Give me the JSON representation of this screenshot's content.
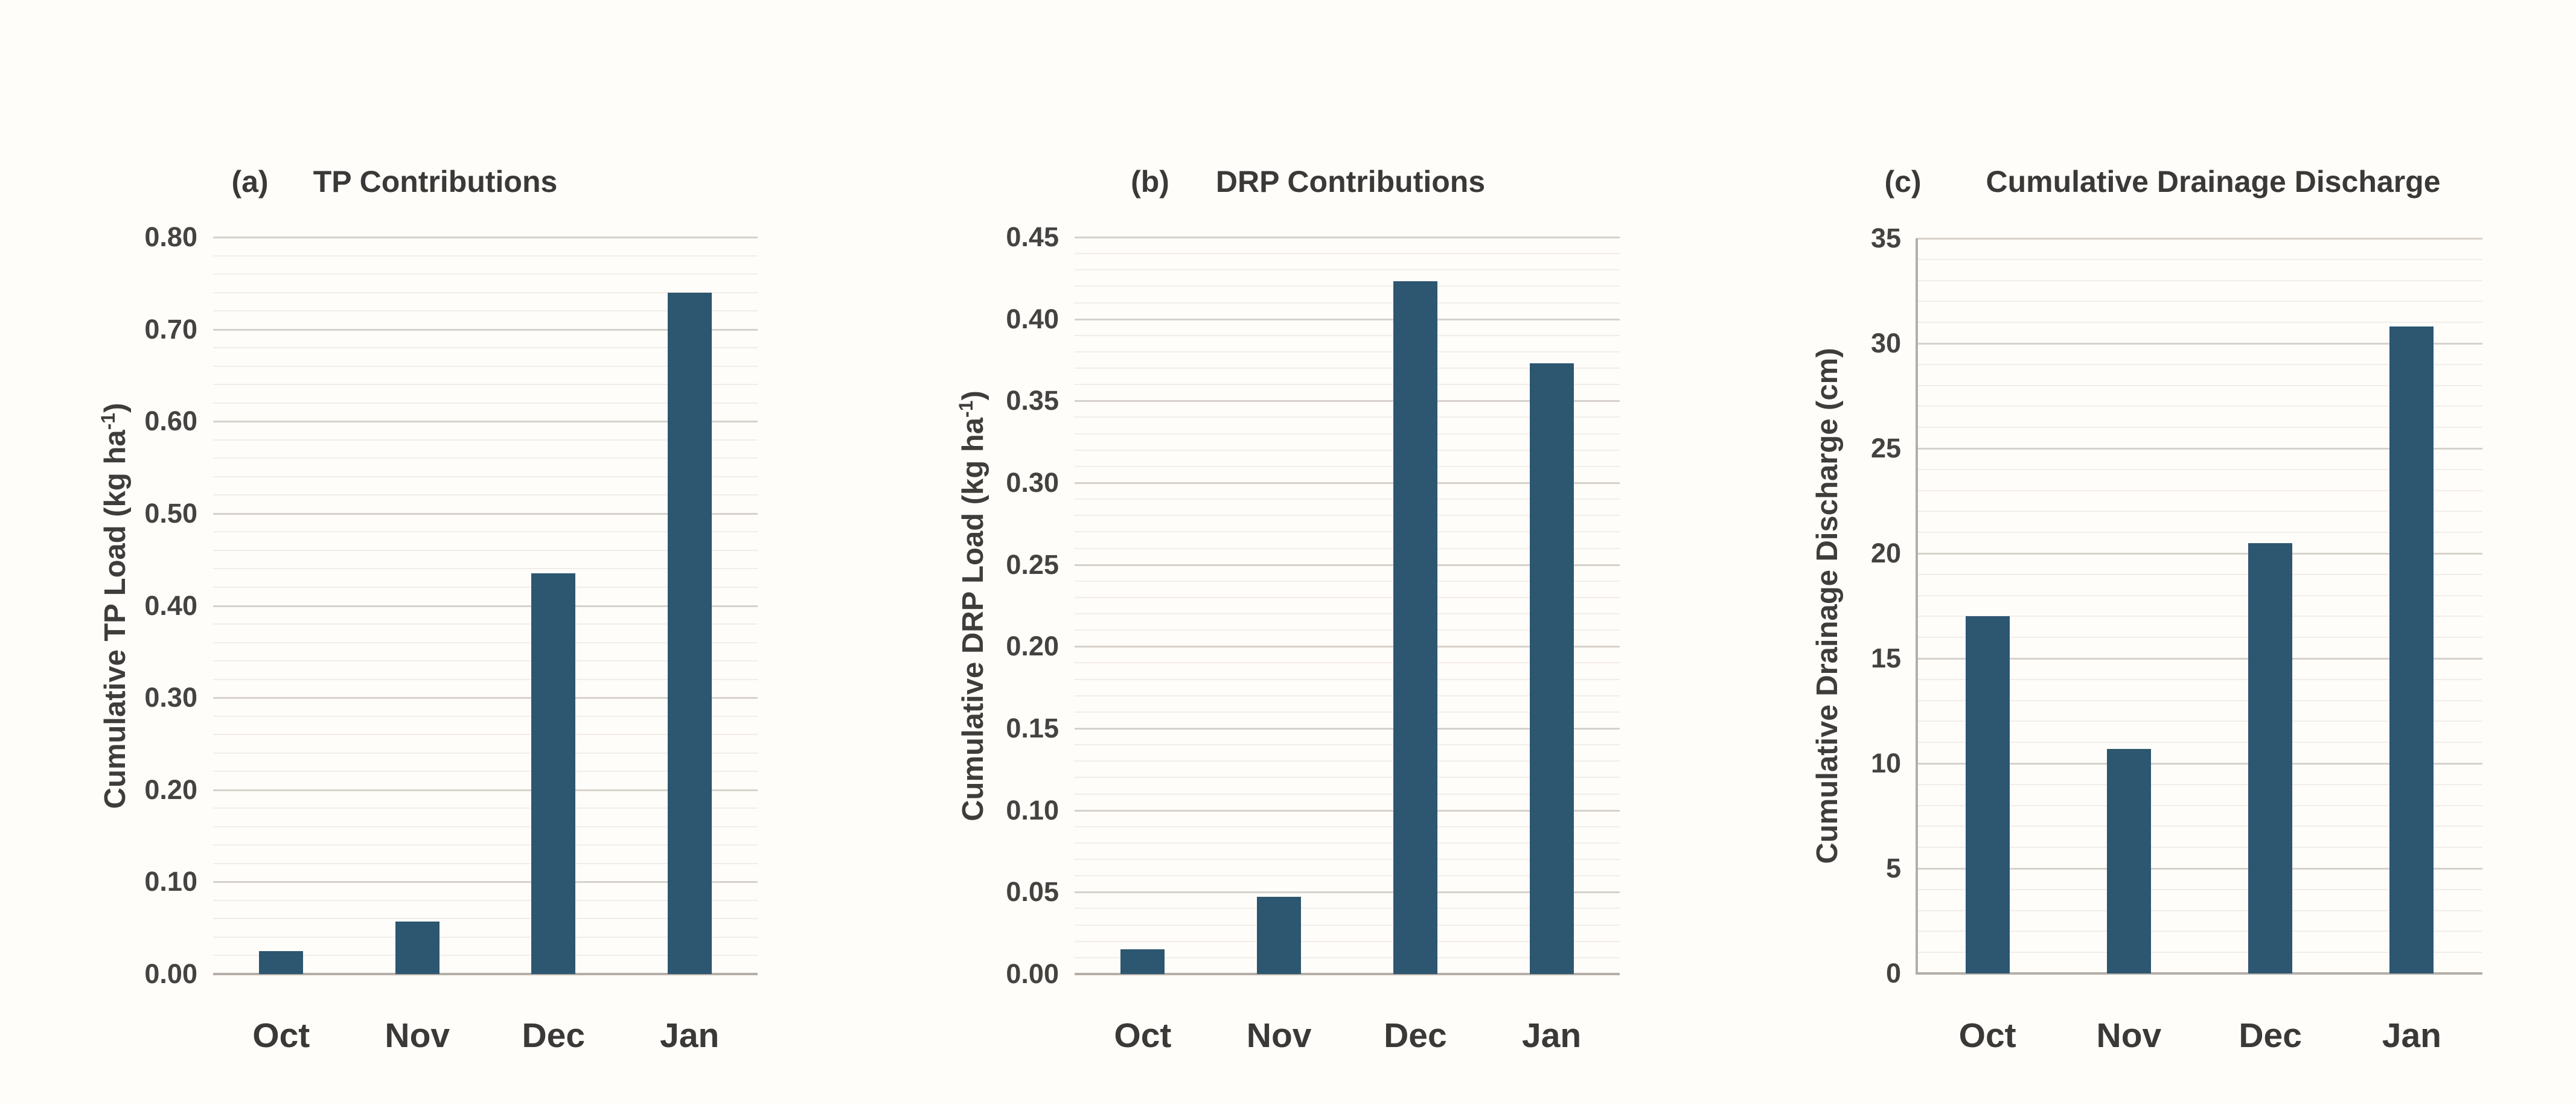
{
  "page": {
    "background_color": "#fffdf9",
    "text_color": "#3a3938"
  },
  "chart_data": [
    {
      "type": "bar",
      "panel_label": "(a)",
      "title": "TP Contributions",
      "ylabel_prefix": "Cumulative TP Load (kg ha",
      "ylabel_sup": "-1",
      "ylabel_suffix": ")",
      "categories": [
        "Oct",
        "Nov",
        "Dec",
        "Jan"
      ],
      "values": [
        0.025,
        0.057,
        0.435,
        0.74
      ],
      "ylim": [
        0,
        0.8
      ],
      "ytick_labels": [
        "0.00",
        "0.10",
        "0.20",
        "0.30",
        "0.40",
        "0.50",
        "0.60",
        "0.70",
        "0.80"
      ],
      "major_step": 0.1,
      "minor_step": 0.02,
      "grid": "on",
      "legend": "none",
      "bar_color": "#2d5670"
    },
    {
      "type": "bar",
      "panel_label": "(b)",
      "title": "DRP Contributions",
      "ylabel_prefix": "Cumulative DRP Load (kg ha",
      "ylabel_sup": "-1",
      "ylabel_suffix": ")",
      "categories": [
        "Oct",
        "Nov",
        "Dec",
        "Jan"
      ],
      "values": [
        0.015,
        0.047,
        0.423,
        0.373
      ],
      "ylim": [
        0,
        0.45
      ],
      "ytick_labels": [
        "0.00",
        "0.05",
        "0.10",
        "0.15",
        "0.20",
        "0.25",
        "0.30",
        "0.35",
        "0.40",
        "0.45"
      ],
      "major_step": 0.05,
      "minor_step": 0.01,
      "grid": "on",
      "legend": "none",
      "bar_color": "#2d5670"
    },
    {
      "type": "bar",
      "panel_label": "(c)",
      "title": "Cumulative Drainage Discharge",
      "ylabel_prefix": "Cumulative Drainage Discharge (cm",
      "ylabel_sup": "",
      "ylabel_suffix": ")",
      "categories": [
        "Oct",
        "Nov",
        "Dec",
        "Jan"
      ],
      "values": [
        17.0,
        10.7,
        20.5,
        30.8
      ],
      "ylim": [
        0,
        35
      ],
      "ytick_labels": [
        "0",
        "5",
        "10",
        "15",
        "20",
        "25",
        "30",
        "35"
      ],
      "major_step": 5,
      "minor_step": 1,
      "grid": "on",
      "legend": "none",
      "bar_color": "#2d5670"
    }
  ]
}
